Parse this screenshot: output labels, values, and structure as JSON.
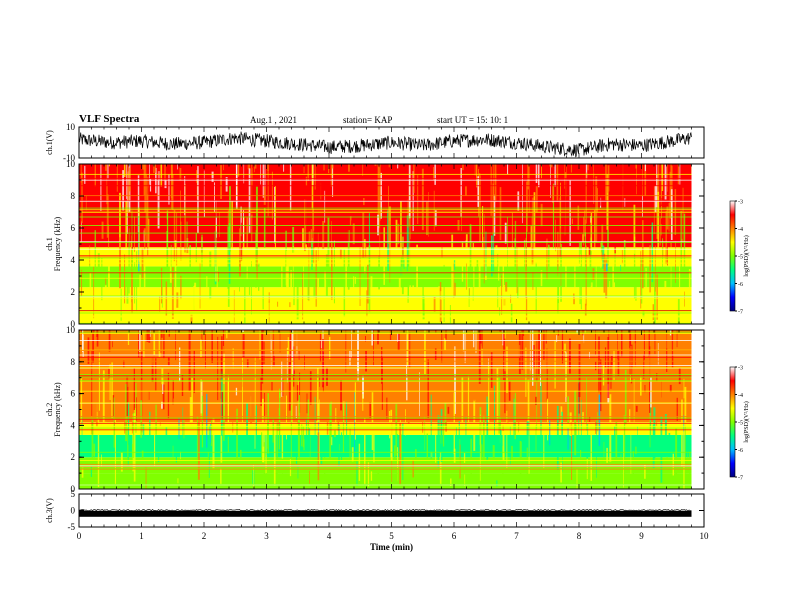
{
  "header": {
    "title": "VLF Spectra",
    "date": "Aug.1 , 2021",
    "station": "station= KAP",
    "start": "start UT = 15: 10: 1"
  },
  "chart_data": [
    {
      "type": "line",
      "name": "ch1-waveform",
      "ylabel": "ch.1(V)",
      "ylim": [
        -10,
        10
      ],
      "y_ticks": [
        "10",
        "-10"
      ],
      "x": [
        0,
        0.5,
        1,
        1.5,
        2,
        2.5,
        3,
        3.5,
        4,
        4.5,
        5,
        5.5,
        6,
        6.5,
        7,
        7.5,
        8,
        8.5,
        9,
        9.5,
        9.8
      ],
      "y": [
        2,
        0,
        1,
        -1,
        0,
        3,
        1,
        -1,
        -3,
        -2,
        0,
        -2,
        1,
        2,
        0,
        -3,
        -5,
        -1,
        -2,
        1,
        3
      ]
    },
    {
      "type": "heatmap",
      "name": "ch1-spectrogram",
      "ylabel": "ch.1 Frequency (kHz)",
      "ylim": [
        0,
        10
      ],
      "y_ticks": [
        "0",
        "2",
        "4",
        "6",
        "8",
        "10"
      ],
      "xlim": [
        0,
        10
      ],
      "colorbar": {
        "label": "log(PSD)(V²/Hz)",
        "range": [
          -7,
          -3
        ],
        "ticks": [
          "-3",
          "-4",
          "-5",
          "-6",
          "-7"
        ],
        "colors": [
          "#000080",
          "#0000ff",
          "#00bfff",
          "#00ff80",
          "#80ff00",
          "#ffff00",
          "#ff8000",
          "#ff0000",
          "#ffffff"
        ]
      },
      "bands_khz": [
        {
          "from": 0,
          "to": 1.0,
          "level": -4.6
        },
        {
          "from": 1.0,
          "to": 2.3,
          "level": -4.5
        },
        {
          "from": 2.3,
          "to": 3.0,
          "level": -4.8
        },
        {
          "from": 3.0,
          "to": 3.6,
          "level": -5.2
        },
        {
          "from": 3.6,
          "to": 4.8,
          "level": -4.4
        },
        {
          "from": 4.8,
          "to": 10,
          "level": -3.7
        }
      ]
    },
    {
      "type": "heatmap",
      "name": "ch2-spectrogram",
      "ylabel": "ch.2 Frequency (kHz)",
      "ylim": [
        0,
        10
      ],
      "y_ticks": [
        "0",
        "2",
        "4",
        "6",
        "8",
        "10"
      ],
      "xlim": [
        0,
        10
      ],
      "colorbar": {
        "label": "log(PSD)(V²/Hz)",
        "range": [
          -7,
          -3
        ],
        "ticks": [
          "-3",
          "-4",
          "-5",
          "-6",
          "-7"
        ],
        "colors": [
          "#000080",
          "#0000ff",
          "#00bfff",
          "#00ff80",
          "#80ff00",
          "#ffff00",
          "#ff8000",
          "#ff0000",
          "#ffffff"
        ]
      },
      "bands_khz": [
        {
          "from": 0,
          "to": 1.0,
          "level": -4.8
        },
        {
          "from": 1.0,
          "to": 2.0,
          "level": -5.0
        },
        {
          "from": 2.0,
          "to": 3.4,
          "level": -5.3
        },
        {
          "from": 3.4,
          "to": 4.2,
          "level": -4.6
        },
        {
          "from": 4.2,
          "to": 10,
          "level": -3.8
        }
      ]
    },
    {
      "type": "line",
      "name": "ch3-waveform",
      "ylabel": "ch.3(V)",
      "ylim": [
        -5,
        5
      ],
      "y_ticks": [
        "5",
        "0",
        "-5"
      ],
      "x": [
        0,
        9.8
      ],
      "y": [
        -1,
        -1
      ]
    }
  ],
  "x_axis": {
    "label": "Time (min)",
    "range": [
      0,
      10
    ],
    "ticks": [
      "0",
      "1",
      "2",
      "3",
      "4",
      "5",
      "6",
      "7",
      "8",
      "9",
      "10"
    ]
  }
}
